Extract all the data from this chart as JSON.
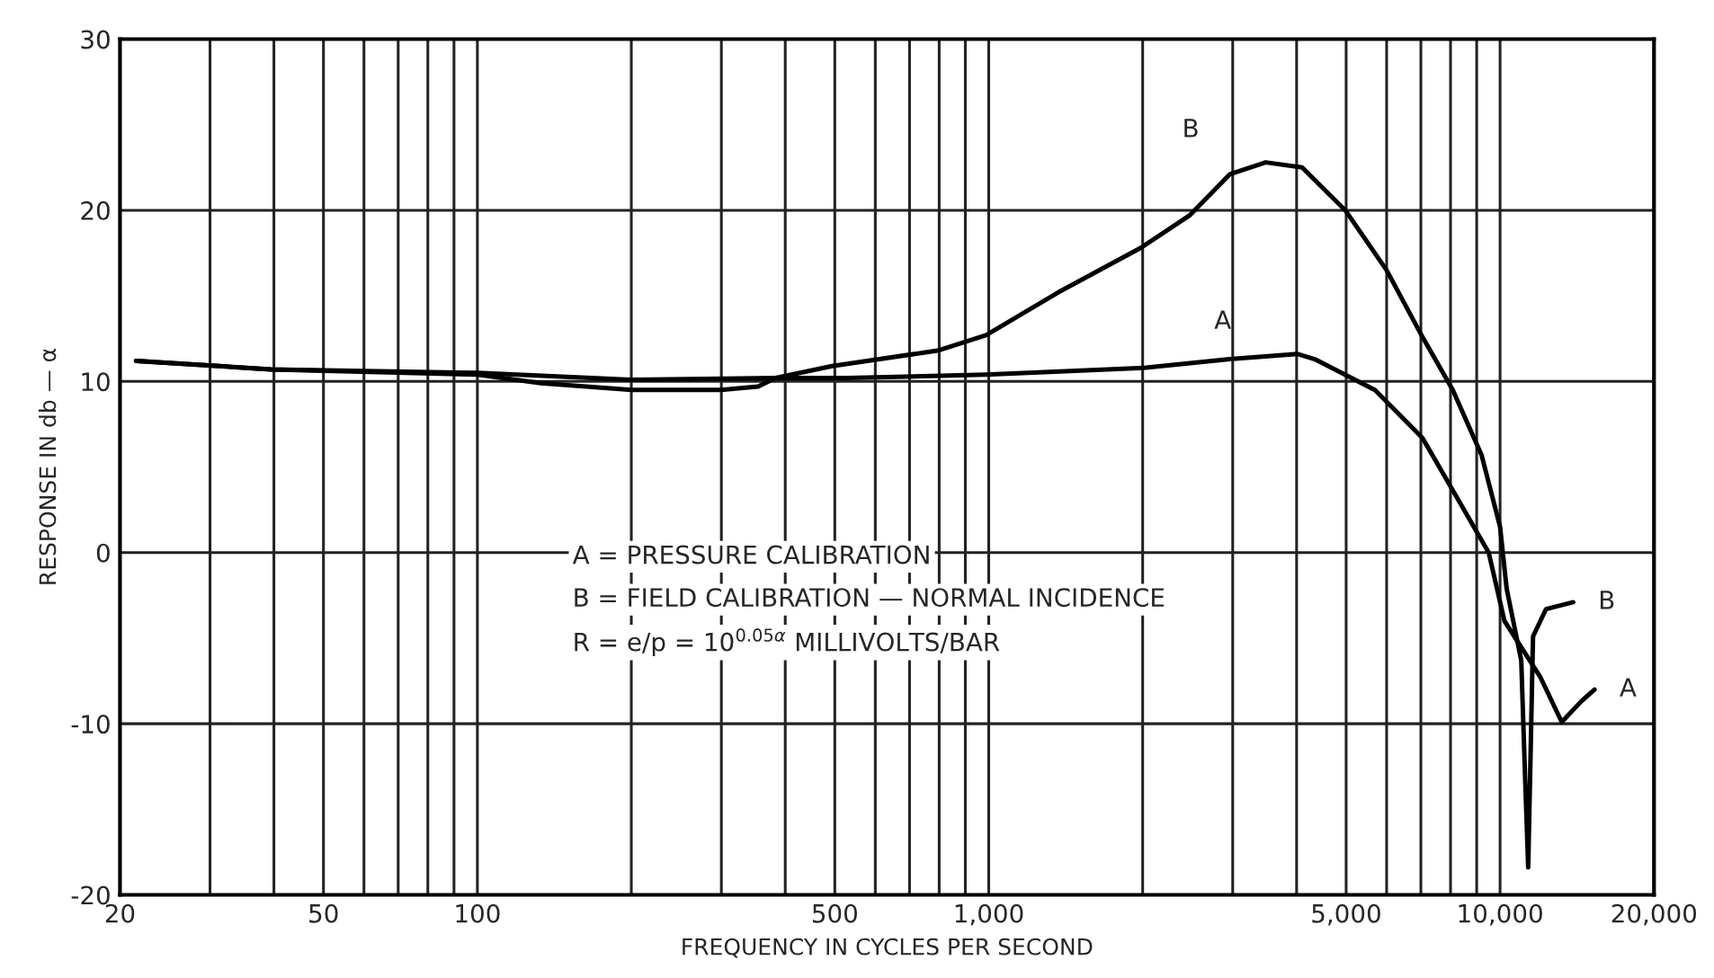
{
  "chart_data": {
    "type": "line",
    "xlabel": "FREQUENCY IN CYCLES PER SECOND",
    "ylabel": "RESPONSE IN db — α",
    "log": "x",
    "grid": true,
    "marker": "none",
    "line_style": "solid",
    "xlim": [
      20,
      20000
    ],
    "ylim": [
      -20,
      30
    ],
    "yticks": [
      -20,
      -10,
      0,
      10,
      20,
      30
    ],
    "xticks": [
      20,
      {
        "value": 30,
        "label": null
      },
      {
        "value": 40,
        "label": null
      },
      50,
      {
        "value": 60,
        "label": null
      },
      {
        "value": 70,
        "label": null
      },
      {
        "value": 80,
        "label": null
      },
      {
        "value": 90,
        "label": null
      },
      100,
      {
        "value": 200,
        "label": null
      },
      {
        "value": 300,
        "label": null
      },
      {
        "value": 400,
        "label": null
      },
      500,
      {
        "value": 600,
        "label": null
      },
      {
        "value": 700,
        "label": null
      },
      {
        "value": 800,
        "label": null
      },
      {
        "value": 900,
        "label": null
      },
      {
        "value": 1000,
        "label": "1,000"
      },
      {
        "value": 2000,
        "label": null
      },
      {
        "value": 3000,
        "label": null
      },
      {
        "value": 4000,
        "label": null
      },
      {
        "value": 5000,
        "label": "5,000"
      },
      {
        "value": 6000,
        "label": null
      },
      {
        "value": 7000,
        "label": null
      },
      {
        "value": 8000,
        "label": null
      },
      {
        "value": 9000,
        "label": null
      },
      {
        "value": 10000,
        "label": "10,000"
      },
      {
        "value": 20000,
        "label": "20,000"
      }
    ],
    "series": [
      {
        "name": "A",
        "color": "#000000",
        "x": [
          21.5,
          39.5,
          100,
          200,
          383,
          530,
          988,
          2030,
          2960,
          4020,
          4340,
          5690,
          7050,
          8240,
          9500,
          10200,
          12000,
          13200,
          14400,
          15300
        ],
        "values": [
          11.2,
          10.7,
          10.5,
          10.1,
          10.2,
          10.2,
          10.4,
          10.8,
          11.3,
          11.6,
          11.3,
          9.5,
          6.7,
          3.2,
          0,
          -4,
          -7.3,
          -9.9,
          -8.7,
          -8.0
        ]
      },
      {
        "name": "B",
        "color": "#000000",
        "x": [
          21.5,
          39.5,
          100,
          133,
          200,
          300,
          354,
          383,
          494,
          794,
          988,
          1367,
          1983,
          2470,
          2960,
          3480,
          4100,
          4980,
          6000,
          7050,
          8080,
          9200,
          10000,
          10300,
          11000,
          11200,
          11350,
          11600,
          12300,
          13900
        ],
        "values": [
          11.2,
          10.7,
          10.4,
          9.9,
          9.5,
          9.5,
          9.7,
          10.2,
          10.9,
          11.8,
          12.7,
          15.2,
          17.8,
          19.7,
          22.1,
          22.8,
          22.5,
          20,
          16.5,
          12.6,
          9.5,
          5.7,
          1.5,
          -2.1,
          -6.3,
          -13.4,
          -18.4,
          -4.9,
          -3.3,
          -2.9
        ]
      }
    ],
    "annotations": [
      "A = PRESSURE CALIBRATION",
      "B = FIELD CALIBRATION — NORMAL INCIDENCE",
      "R = e/p = 10$^{0.05α}$ MILLIVOLTS/BAR"
    ]
  }
}
